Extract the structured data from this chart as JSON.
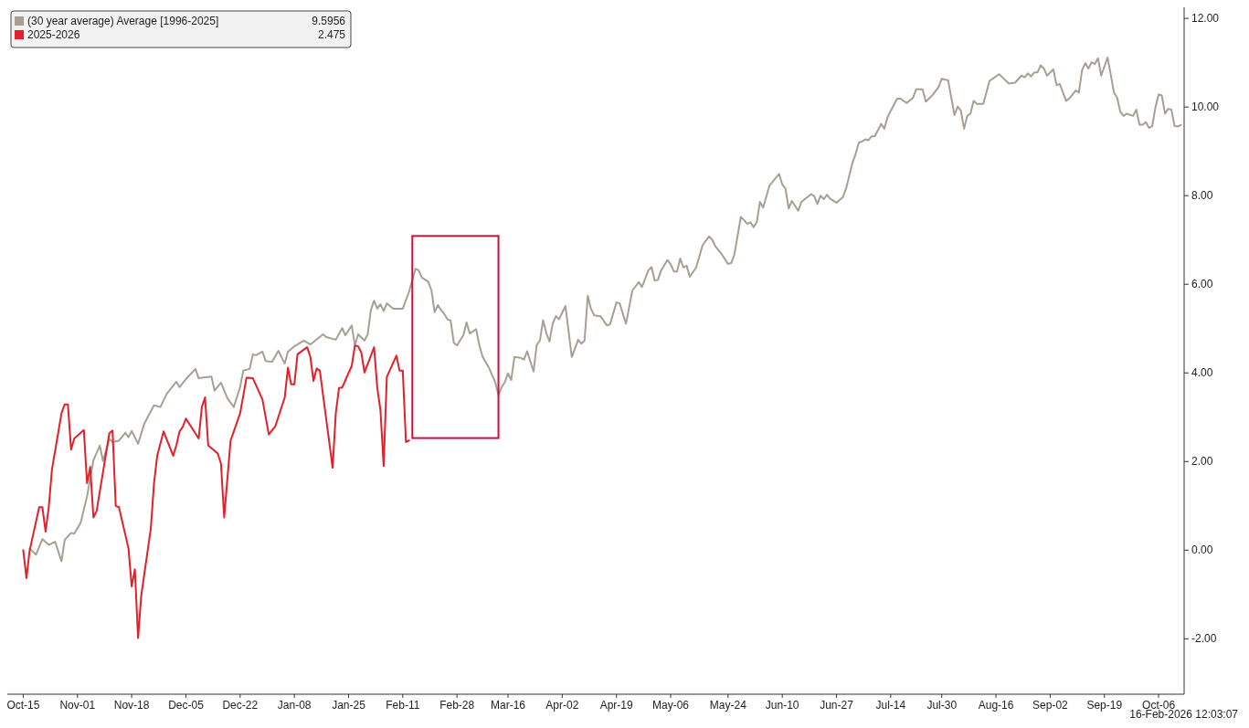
{
  "chart_data": {
    "type": "line",
    "legend": "top left",
    "grid": false,
    "marker": "none",
    "line_style": "solid",
    "xlim": [
      "2025-10-10",
      "2026-10-14"
    ],
    "ylim": [
      -3.25,
      12.25
    ],
    "xticks": [
      {
        "value": "2025-10-15",
        "label": "Oct-15"
      },
      {
        "value": "2025-11-01",
        "label": "Nov-01"
      },
      {
        "value": "2025-11-18",
        "label": "Nov-18"
      },
      {
        "value": "2025-12-05",
        "label": "Dec-05"
      },
      {
        "value": "2025-12-22",
        "label": "Dec-22"
      },
      {
        "value": "2026-01-08",
        "label": "Jan-08"
      },
      {
        "value": "2026-01-25",
        "label": "Jan-25"
      },
      {
        "value": "2026-02-11",
        "label": "Feb-11"
      },
      {
        "value": "2026-02-28",
        "label": "Feb-28"
      },
      {
        "value": "2026-03-16",
        "label": "Mar-16"
      },
      {
        "value": "2026-04-02",
        "label": "Apr-02"
      },
      {
        "value": "2026-04-19",
        "label": "Apr-19"
      },
      {
        "value": "2026-05-06",
        "label": "May-06"
      },
      {
        "value": "2026-05-24",
        "label": "May-24"
      },
      {
        "value": "2026-06-10",
        "label": "Jun-10"
      },
      {
        "value": "2026-06-27",
        "label": "Jun-27"
      },
      {
        "value": "2026-07-14",
        "label": "Jul-14"
      },
      {
        "value": "2026-07-30",
        "label": "Jul-30"
      },
      {
        "value": "2026-08-16",
        "label": "Aug-16"
      },
      {
        "value": "2026-09-02",
        "label": "Sep-02"
      },
      {
        "value": "2026-09-19",
        "label": "Sep-19"
      },
      {
        "value": "2026-10-06",
        "label": "Oct-06"
      }
    ],
    "yticks": [
      {
        "value": -2,
        "label": "-2.00"
      },
      {
        "value": 0,
        "label": "0.00"
      },
      {
        "value": 2,
        "label": "2.00"
      },
      {
        "value": 4,
        "label": "4.00"
      },
      {
        "value": 6,
        "label": "6.00"
      },
      {
        "value": 8,
        "label": "8.00"
      },
      {
        "value": 10,
        "label": "10.00"
      },
      {
        "value": 12,
        "label": "12.00"
      }
    ],
    "annotations": [
      "9.5956",
      "2.475",
      "16-Feb-2026 12:03:07"
    ],
    "series": [
      {
        "name": "(30 year average) Average [1996-2025]",
        "color": "#a89f94",
        "x": [
          "2025-10-17",
          "2025-10-19",
          "2025-10-21",
          "2025-10-23",
          "2025-10-25",
          "2025-10-27",
          "2025-10-28",
          "2025-10-30",
          "2025-10-31",
          "2025-11-02",
          "2025-11-04",
          "2025-11-06",
          "2025-11-08",
          "2025-11-09",
          "2025-11-11",
          "2025-11-12",
          "2025-11-14",
          "2025-11-16",
          "2025-11-17",
          "2025-11-18",
          "2025-11-20",
          "2025-11-22",
          "2025-11-25",
          "2025-11-27",
          "2025-11-29",
          "2025-12-02",
          "2025-12-03",
          "2025-12-05",
          "2025-12-08",
          "2025-12-09",
          "2025-12-13",
          "2025-12-14",
          "2025-12-16",
          "2025-12-18",
          "2025-12-20",
          "2025-12-22",
          "2025-12-23",
          "2025-12-25",
          "2025-12-26",
          "2025-12-27",
          "2025-12-29",
          "2025-12-30",
          "2026-01-01",
          "2026-01-03",
          "2026-01-05",
          "2026-01-06",
          "2026-01-08",
          "2026-01-11",
          "2026-01-13",
          "2026-01-17",
          "2026-01-18",
          "2026-01-21",
          "2026-01-23",
          "2026-01-24",
          "2026-01-26",
          "2026-01-27",
          "2026-01-28",
          "2026-01-30",
          "2026-01-31",
          "2026-02-01",
          "2026-02-02",
          "2026-02-03",
          "2026-02-04",
          "2026-02-05",
          "2026-02-06",
          "2026-02-08",
          "2026-02-11",
          "2026-02-13",
          "2026-02-14",
          "2026-02-15",
          "2026-02-16",
          "2026-02-17",
          "2026-02-19",
          "2026-02-20",
          "2026-02-21",
          "2026-02-22",
          "2026-02-23",
          "2026-02-24",
          "2026-02-25",
          "2026-02-26",
          "2026-02-27",
          "2026-02-28",
          "2026-03-02",
          "2026-03-03",
          "2026-03-04",
          "2026-03-06",
          "2026-03-07",
          "2026-03-08",
          "2026-03-10",
          "2026-03-11",
          "2026-03-12",
          "2026-03-13",
          "2026-03-14",
          "2026-03-15",
          "2026-03-16",
          "2026-03-17",
          "2026-03-18",
          "2026-03-20",
          "2026-03-21",
          "2026-03-22",
          "2026-03-24",
          "2026-03-25",
          "2026-03-26",
          "2026-03-27",
          "2026-03-28",
          "2026-03-29",
          "2026-03-30",
          "2026-03-31",
          "2026-04-01",
          "2026-04-03",
          "2026-04-05",
          "2026-04-07",
          "2026-04-08",
          "2026-04-09",
          "2026-04-10",
          "2026-04-11",
          "2026-04-12",
          "2026-04-14",
          "2026-04-16",
          "2026-04-17",
          "2026-04-19",
          "2026-04-20",
          "2026-04-22",
          "2026-04-24",
          "2026-04-26",
          "2026-04-27",
          "2026-04-29",
          "2026-04-30",
          "2026-05-01",
          "2026-05-02",
          "2026-05-03",
          "2026-05-05",
          "2026-05-06",
          "2026-05-07",
          "2026-05-08",
          "2026-05-09",
          "2026-05-10",
          "2026-05-11",
          "2026-05-12",
          "2026-05-14",
          "2026-05-16",
          "2026-05-18",
          "2026-05-19",
          "2026-05-20",
          "2026-05-22",
          "2026-05-24",
          "2026-05-25",
          "2026-05-26",
          "2026-05-28",
          "2026-05-29",
          "2026-05-30",
          "2026-05-31",
          "2026-06-01",
          "2026-06-02",
          "2026-06-03",
          "2026-06-04",
          "2026-06-06",
          "2026-06-09",
          "2026-06-10",
          "2026-06-11",
          "2026-06-12",
          "2026-06-13",
          "2026-06-15",
          "2026-06-16",
          "2026-06-19",
          "2026-06-20",
          "2026-06-21",
          "2026-06-22",
          "2026-06-23",
          "2026-06-24",
          "2026-06-25",
          "2026-06-27",
          "2026-06-29",
          "2026-06-30",
          "2026-07-02",
          "2026-07-03",
          "2026-07-04",
          "2026-07-05",
          "2026-07-06",
          "2026-07-07",
          "2026-07-08",
          "2026-07-09",
          "2026-07-11",
          "2026-07-12",
          "2026-07-13",
          "2026-07-16",
          "2026-07-17",
          "2026-07-19",
          "2026-07-21",
          "2026-07-22",
          "2026-07-24",
          "2026-07-25",
          "2026-07-27",
          "2026-07-29",
          "2026-07-30",
          "2026-08-01",
          "2026-08-03",
          "2026-08-04",
          "2026-08-05",
          "2026-08-06",
          "2026-08-07",
          "2026-08-08",
          "2026-08-09",
          "2026-08-10",
          "2026-08-12",
          "2026-08-14",
          "2026-08-15",
          "2026-08-17",
          "2026-08-18",
          "2026-08-20",
          "2026-08-22",
          "2026-08-24",
          "2026-08-25",
          "2026-08-26",
          "2026-08-27",
          "2026-08-28",
          "2026-08-29",
          "2026-08-30",
          "2026-08-31",
          "2026-09-01",
          "2026-09-03",
          "2026-09-04",
          "2026-09-05",
          "2026-09-07",
          "2026-09-08",
          "2026-09-10",
          "2026-09-11",
          "2026-09-12",
          "2026-09-13",
          "2026-09-14",
          "2026-09-15",
          "2026-09-16",
          "2026-09-17",
          "2026-09-18",
          "2026-09-20",
          "2026-09-22",
          "2026-09-23",
          "2026-09-24",
          "2026-09-25",
          "2026-09-26",
          "2026-09-28",
          "2026-09-29",
          "2026-09-30",
          "2026-10-01",
          "2026-10-02",
          "2026-10-03",
          "2026-10-04",
          "2026-10-05",
          "2026-10-06",
          "2026-10-07",
          "2026-10-08",
          "2026-10-09",
          "2026-10-10",
          "2026-10-11",
          "2026-10-12",
          "2026-10-13"
        ],
        "values": [
          0.04,
          -0.1,
          0.25,
          0.12,
          0.19,
          -0.25,
          0.23,
          0.39,
          0.37,
          0.62,
          1.21,
          2.03,
          2.36,
          2.01,
          2.51,
          2.44,
          2.47,
          2.65,
          2.55,
          2.69,
          2.4,
          2.86,
          3.27,
          3.23,
          3.53,
          3.8,
          3.68,
          3.86,
          4.09,
          3.88,
          3.92,
          3.6,
          3.78,
          3.43,
          3.23,
          3.68,
          4.05,
          4.09,
          4.42,
          4.4,
          4.48,
          4.27,
          4.25,
          4.5,
          4.21,
          4.48,
          4.6,
          4.73,
          4.64,
          4.87,
          4.81,
          4.75,
          5.01,
          4.85,
          5.07,
          4.62,
          4.87,
          4.73,
          4.87,
          5.42,
          5.63,
          5.45,
          5.55,
          5.4,
          5.57,
          5.45,
          5.45,
          5.84,
          6.1,
          6.35,
          6.31,
          6.15,
          6.06,
          5.86,
          5.37,
          5.53,
          5.42,
          5.33,
          5.21,
          5.18,
          4.68,
          4.62,
          4.85,
          5.14,
          4.89,
          4.99,
          4.63,
          4.37,
          4.12,
          3.95,
          3.79,
          3.5,
          3.68,
          3.79,
          3.99,
          3.84,
          4.36,
          4.34,
          4.3,
          4.49,
          4.03,
          4.63,
          4.73,
          5.19,
          4.9,
          4.71,
          5.11,
          5.28,
          5.21,
          5.51,
          4.36,
          4.75,
          4.66,
          4.73,
          5.74,
          5.45,
          5.3,
          5.28,
          5.07,
          5.1,
          5.59,
          5.57,
          5.11,
          5.86,
          6.05,
          5.94,
          6.31,
          6.39,
          6.08,
          6.1,
          6.31,
          6.55,
          6.45,
          6.29,
          6.29,
          6.58,
          6.38,
          6.42,
          6.17,
          6.38,
          6.88,
          7.08,
          7.01,
          6.86,
          6.68,
          6.46,
          6.48,
          6.68,
          7.52,
          7.45,
          7.36,
          7.4,
          7.29,
          7.4,
          7.86,
          7.73,
          8.23,
          8.49,
          8.25,
          8.16,
          7.71,
          7.88,
          7.66,
          7.86,
          8.03,
          7.99,
          7.81,
          8,
          7.92,
          8.02,
          7.93,
          7.84,
          7.97,
          8.16,
          8.74,
          8.94,
          9.2,
          9.22,
          9.27,
          9.25,
          9.34,
          9.34,
          9.62,
          9.51,
          9.77,
          10.19,
          10.19,
          10.09,
          10.21,
          10.4,
          10.4,
          10.12,
          10.26,
          10.45,
          10.64,
          10.6,
          9.82,
          10.01,
          9.92,
          9.51,
          9.8,
          9.85,
          10.14,
          10.07,
          10.07,
          10.59,
          10.64,
          10.74,
          10.67,
          10.53,
          10.55,
          10.71,
          10.67,
          10.76,
          10.69,
          10.78,
          10.78,
          10.94,
          10.87,
          10.71,
          10.85,
          10.49,
          10.52,
          10.14,
          10.19,
          10.37,
          10.33,
          10.83,
          10.99,
          10.87,
          11.01,
          10.97,
          11.1,
          10.71,
          11.12,
          10.33,
          10.21,
          9.89,
          9.8,
          9.85,
          9.8,
          9.94,
          9.6,
          9.6,
          9.66,
          9.53,
          9.57,
          9.99,
          10.28,
          10.26,
          9.85,
          9.96,
          9.94,
          9.57,
          9.56,
          9.5956
        ]
      },
      {
        "name": "2025-2026",
        "color": "#e0202a",
        "x": [
          "2025-10-15",
          "2025-10-16",
          "2025-10-17",
          "2025-10-20",
          "2025-10-21",
          "2025-10-22",
          "2025-10-23",
          "2025-10-24",
          "2025-10-27",
          "2025-10-28",
          "2025-10-29",
          "2025-10-30",
          "2025-10-31",
          "2025-11-03",
          "2025-11-04",
          "2025-11-05",
          "2025-11-06",
          "2025-11-07",
          "2025-11-11",
          "2025-11-12",
          "2025-11-13",
          "2025-11-14",
          "2025-11-17",
          "2025-11-18",
          "2025-11-19",
          "2025-11-20",
          "2025-11-21",
          "2025-11-24",
          "2025-11-25",
          "2025-11-26",
          "2025-11-28",
          "2025-12-01",
          "2025-12-02",
          "2025-12-03",
          "2025-12-04",
          "2025-12-05",
          "2025-12-09",
          "2025-12-10",
          "2025-12-11",
          "2025-12-12",
          "2025-12-15",
          "2025-12-16",
          "2025-12-17",
          "2025-12-19",
          "2025-12-22",
          "2025-12-24",
          "2025-12-26",
          "2025-12-29",
          "2025-12-31",
          "2026-01-02",
          "2026-01-05",
          "2026-01-06",
          "2026-01-07",
          "2026-01-08",
          "2026-01-09",
          "2026-01-12",
          "2026-01-13",
          "2026-01-14",
          "2026-01-15",
          "2026-01-16",
          "2026-01-20",
          "2026-01-21",
          "2026-01-22",
          "2026-01-23",
          "2026-01-26",
          "2026-01-27",
          "2026-01-28",
          "2026-01-29",
          "2026-01-30",
          "2026-02-02",
          "2026-02-03",
          "2026-02-04",
          "2026-02-05",
          "2026-02-06",
          "2026-02-09",
          "2026-02-10",
          "2026-02-11",
          "2026-02-12",
          "2026-02-13"
        ],
        "values": [
          0,
          -0.63,
          -0.01,
          0.97,
          0.97,
          0.42,
          0.97,
          1.82,
          3.09,
          3.29,
          3.29,
          2.27,
          2.52,
          2.71,
          1.51,
          1.88,
          0.74,
          0.88,
          2.64,
          2.7,
          1,
          0.97,
          0.04,
          -0.82,
          -0.43,
          -1.98,
          -1.02,
          0.49,
          1.51,
          2.13,
          2.68,
          2.13,
          2.36,
          2.68,
          2.78,
          2.97,
          2.52,
          3.23,
          3.45,
          2.36,
          2.18,
          1.95,
          0.74,
          2.47,
          3.09,
          3.89,
          3.88,
          3.4,
          2.61,
          2.79,
          3.45,
          4.12,
          3.74,
          3.74,
          4.42,
          4.58,
          4.37,
          3.82,
          4.1,
          4.05,
          1.86,
          3.09,
          3.66,
          3.67,
          4.16,
          4.62,
          4.6,
          4.46,
          4.01,
          4.58,
          3.67,
          3.16,
          1.9,
          3.91,
          4.39,
          4.05,
          4.05,
          2.44,
          2.475
        ]
      }
    ]
  }
}
